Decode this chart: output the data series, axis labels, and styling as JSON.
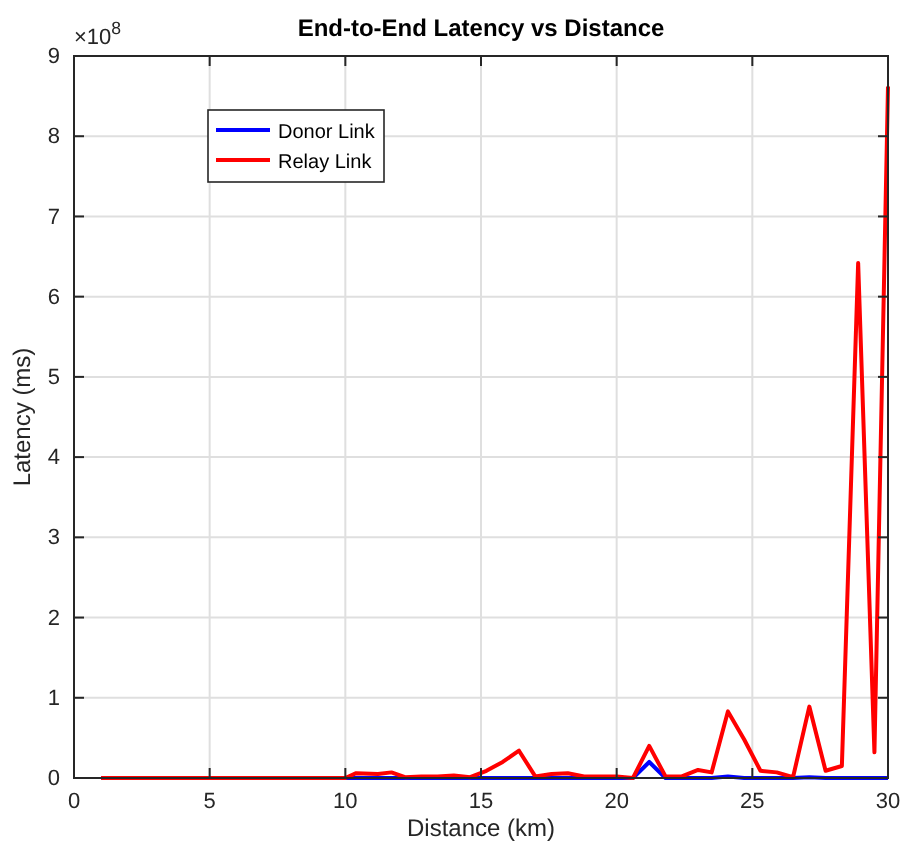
{
  "chart_data": {
    "type": "line",
    "title": "End-to-End Latency vs Distance",
    "xlabel": "Distance (km)",
    "ylabel": "Latency (ms)",
    "annotations": [
      "×10$^{8}$"
    ],
    "xlim": [
      0,
      30
    ],
    "xticks": [
      0,
      5,
      10,
      15,
      20,
      25,
      30
    ],
    "ylim": [
      0,
      9
    ],
    "yticks": [
      0,
      1,
      2,
      3,
      4,
      5,
      6,
      7,
      8,
      9
    ],
    "grid": true,
    "legend": "top left",
    "line_style": "solid",
    "series": [
      {
        "name": "Donor Link",
        "color": "#0000ff",
        "x": [
          1,
          10,
          20.6,
          21.2,
          21.8,
          23.5,
          24.1,
          24.7,
          26.5,
          27.1,
          27.7,
          30
        ],
        "values": [
          0,
          0,
          0,
          0.2,
          0,
          0,
          0.02,
          0,
          0,
          0.01,
          0,
          0
        ]
      },
      {
        "name": "Relay Link",
        "color": "#ff0000",
        "x": [
          1,
          5,
          10,
          10.4,
          11.2,
          11.7,
          12.2,
          12.8,
          13.4,
          14,
          14.6,
          15.2,
          15.8,
          16.4,
          17,
          17.6,
          18.2,
          18.8,
          19.4,
          20,
          20.6,
          21.2,
          21.8,
          22.4,
          23,
          23.5,
          24.1,
          24.7,
          25.3,
          25.9,
          26.5,
          27.1,
          27.7,
          28.3,
          28.9,
          29.5,
          30
        ],
        "values": [
          0,
          0,
          0,
          0.06,
          0.05,
          0.07,
          0.01,
          0.02,
          0.02,
          0.03,
          0.01,
          0.09,
          0.2,
          0.34,
          0.02,
          0.05,
          0.06,
          0.02,
          0.02,
          0.02,
          0,
          0.4,
          0.02,
          0.02,
          0.1,
          0.07,
          0.83,
          0.48,
          0.09,
          0.07,
          0.01,
          0.89,
          0.09,
          0.15,
          6.42,
          0.32,
          8.62
        ]
      }
    ]
  }
}
